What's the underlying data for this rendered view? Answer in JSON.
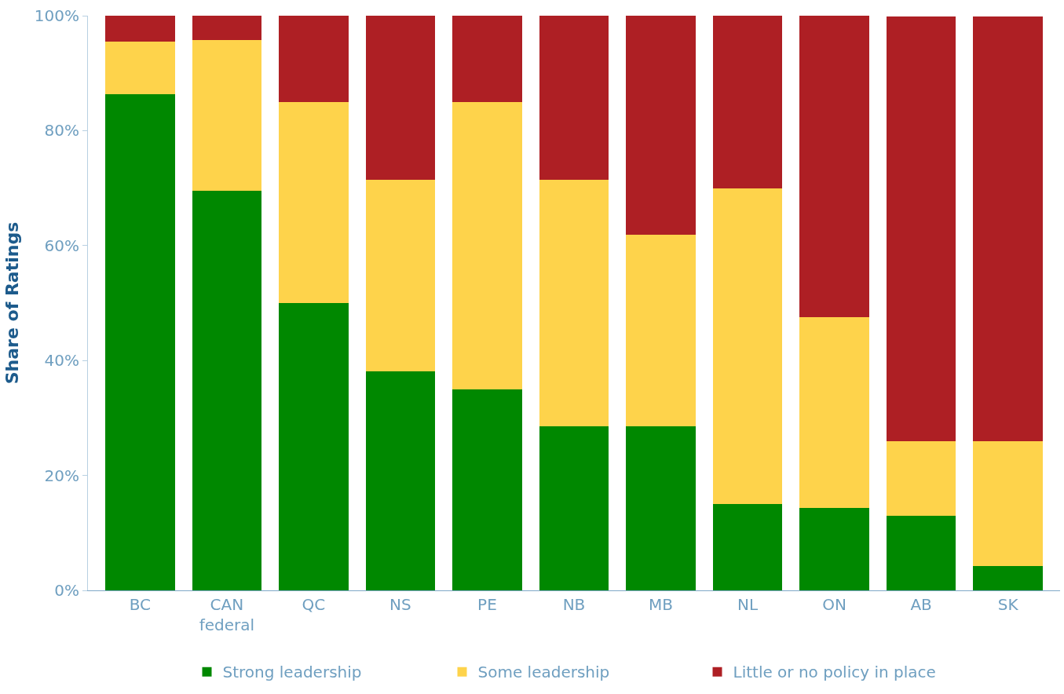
{
  "chart_data": {
    "type": "bar",
    "stacked": true,
    "ylabel": "Share of Ratings",
    "categories": [
      "BC",
      "CAN federal",
      "QC",
      "NS",
      "PE",
      "NB",
      "MB",
      "NL",
      "ON",
      "AB",
      "SK"
    ],
    "series": [
      {
        "name": "Strong leadership",
        "color": "#008800",
        "values": [
          86.4,
          69.6,
          50,
          38.1,
          35,
          28.6,
          28.6,
          15,
          14.3,
          13,
          4.3
        ]
      },
      {
        "name": "Some leadership",
        "color": "#fed34b",
        "values": [
          9.1,
          26.1,
          35,
          33.3,
          50,
          42.9,
          33.3,
          55,
          33.3,
          13,
          21.7
        ]
      },
      {
        "name": "Little or no policy in place",
        "color": "#ae1f24",
        "values": [
          4.5,
          4.3,
          15,
          28.6,
          15,
          28.6,
          38.1,
          30,
          52.4,
          73.9,
          73.9
        ]
      }
    ],
    "ylim": [
      0,
      100
    ],
    "yticks": [
      {
        "value": 0,
        "label": "0%"
      },
      {
        "value": 20,
        "label": "20%"
      },
      {
        "value": 40,
        "label": "40%"
      },
      {
        "value": 60,
        "label": "60%"
      },
      {
        "value": 80,
        "label": "80%"
      },
      {
        "value": 100,
        "label": "100%"
      }
    ],
    "grid": false,
    "legend": "bottom"
  }
}
